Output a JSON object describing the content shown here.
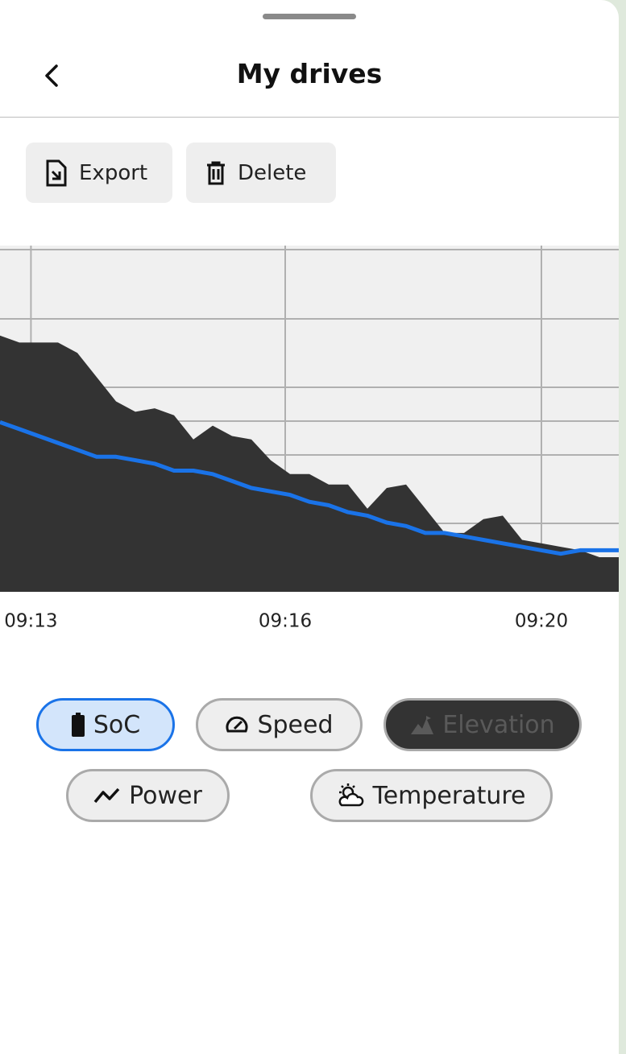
{
  "header": {
    "title": "My drives"
  },
  "actions": [
    "Export",
    "Delete"
  ],
  "chart_data": {
    "type": "area-line",
    "ylim": [
      0,
      100
    ],
    "xlim": [
      0,
      32
    ],
    "xticks": [
      {
        "value": 1.6,
        "label": "09:13"
      },
      {
        "value": 14.75,
        "label": "09:16"
      },
      {
        "value": 28,
        "label": "09:20"
      }
    ],
    "series": [
      {
        "name": "Elevation",
        "kind": "area",
        "color": "#333333",
        "values": [
          74,
          72,
          72,
          72,
          69,
          62,
          55,
          52,
          53,
          51,
          44,
          48,
          45,
          44,
          38,
          34,
          34,
          31,
          31,
          24,
          30,
          31,
          24,
          17,
          17,
          21,
          22,
          15,
          14,
          13,
          12,
          10,
          10
        ]
      },
      {
        "name": "SoC",
        "kind": "line",
        "color": "#1a73e8",
        "values": [
          49,
          47,
          45,
          43,
          41,
          39,
          39,
          38,
          37,
          35,
          35,
          34,
          32,
          30,
          29,
          28,
          26,
          25,
          23,
          22,
          20,
          19,
          17,
          17,
          16,
          15,
          14,
          13,
          12,
          11,
          12,
          12,
          12
        ]
      }
    ]
  },
  "other_metrics": [
    "Speed",
    "Power",
    "Temperature"
  ]
}
